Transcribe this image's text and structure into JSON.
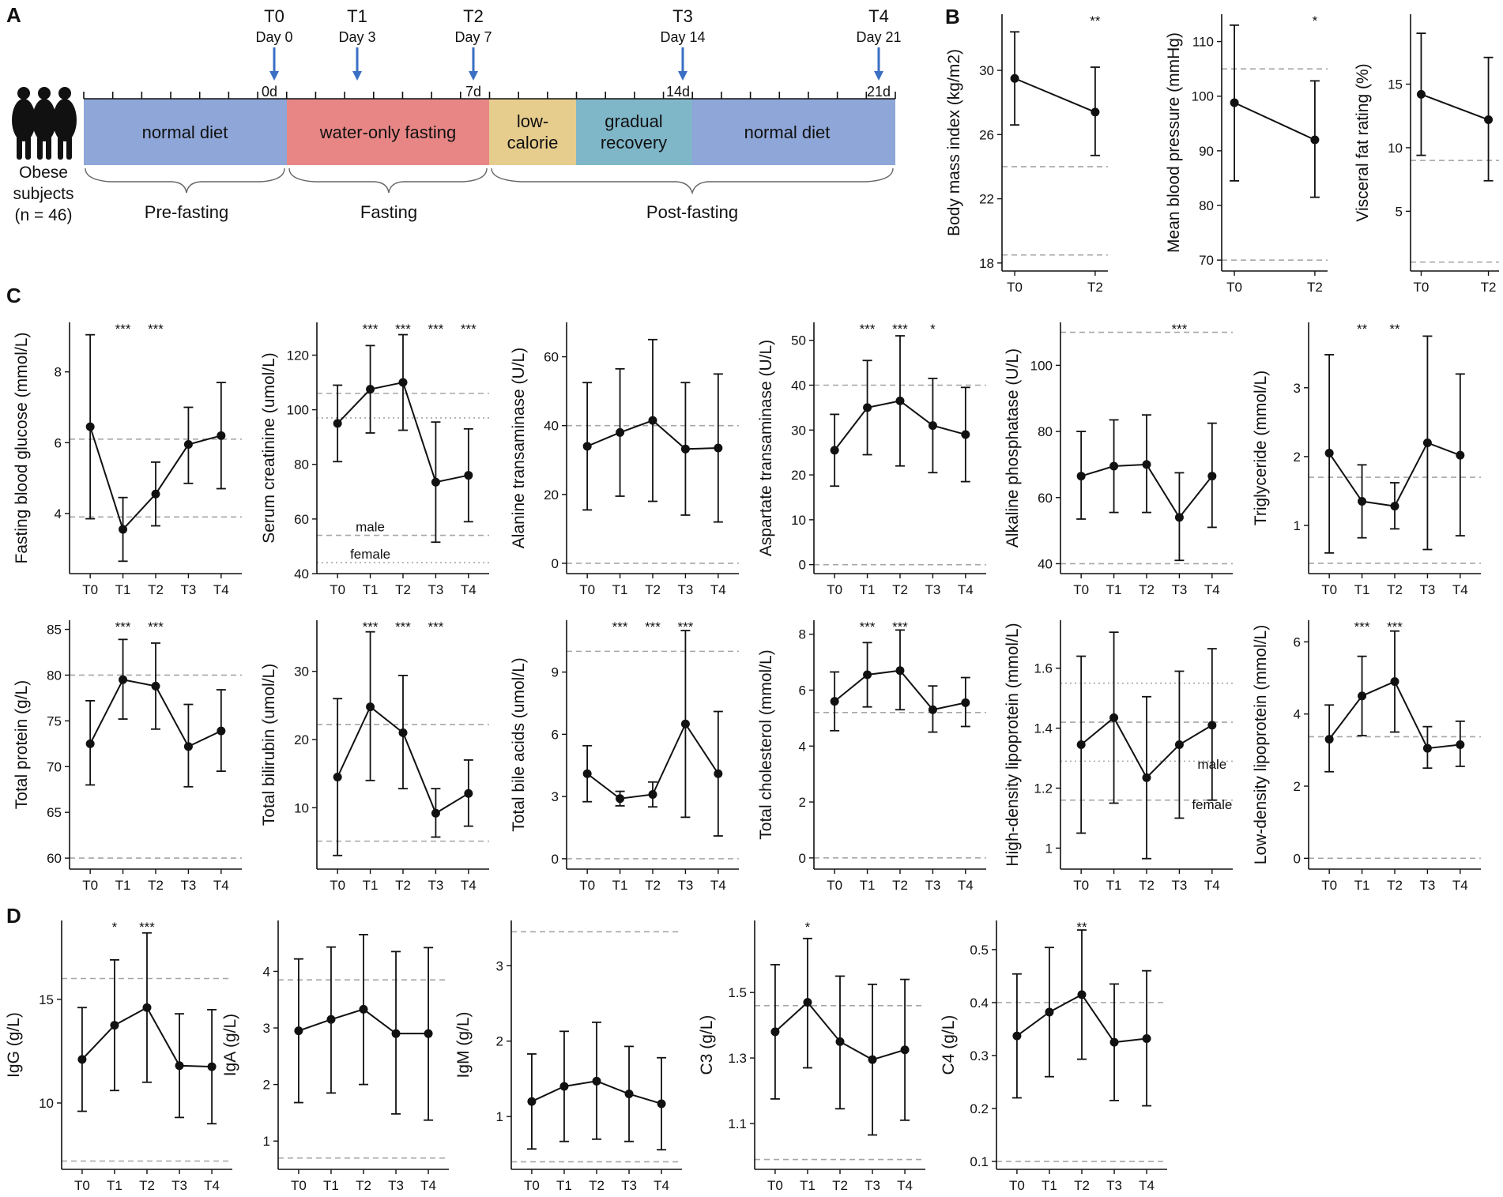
{
  "panel_labels": {
    "a": "A",
    "b": "B",
    "c": "C",
    "d": "D"
  },
  "panel_a": {
    "subjects_label_line1": "Obese",
    "subjects_label_line2": "subjects",
    "subjects_label_line3": "(n = 46)",
    "timepoints": [
      {
        "label": "T0",
        "day": "Day 0",
        "marker": "0d"
      },
      {
        "label": "T1",
        "day": "Day 3",
        "marker": ""
      },
      {
        "label": "T2",
        "day": "Day 7",
        "marker": "7d"
      },
      {
        "label": "T3",
        "day": "Day 14",
        "marker": "14d"
      },
      {
        "label": "T4",
        "day": "Day 21",
        "marker": "21d"
      }
    ],
    "phases": [
      {
        "line1": "normal diet",
        "line2": "",
        "color": "#8ea6d8"
      },
      {
        "line1": "water-only fasting",
        "line2": "",
        "color": "#e88686"
      },
      {
        "line1": "low-",
        "line2": "calorie",
        "color": "#e6cc8d"
      },
      {
        "line1": "gradual",
        "line2": "recovery",
        "color": "#7fb7c9"
      },
      {
        "line1": "normal diet",
        "line2": "",
        "color": "#8ea6d8"
      }
    ],
    "periods": [
      "Pre-fasting",
      "Fasting",
      "Post-fasting"
    ],
    "arrow_color": "#3a6fc4"
  },
  "chart_data": [
    {
      "id": "bmi",
      "type": "line",
      "ylabel": "Body mass index (kg/m2)",
      "categories": [
        "T0",
        "T2"
      ],
      "values": [
        29.5,
        27.4
      ],
      "err_low": [
        26.6,
        24.7
      ],
      "err_high": [
        32.4,
        30.2
      ],
      "significance": [
        "",
        "**"
      ],
      "ylim": [
        17.5,
        33.5
      ],
      "yticks": [
        18,
        22,
        26,
        30
      ],
      "ref_lines": [
        {
          "y": 24,
          "style": "dashed"
        },
        {
          "y": 18.5,
          "style": "dashed"
        }
      ],
      "annotations": []
    },
    {
      "id": "map",
      "type": "line",
      "ylabel": "Mean blood pressure (mmHg)",
      "categories": [
        "T0",
        "T2"
      ],
      "values": [
        98.8,
        92.0
      ],
      "err_low": [
        84.5,
        81.5
      ],
      "err_high": [
        113.0,
        102.8
      ],
      "significance": [
        "",
        "*"
      ],
      "ylim": [
        68,
        115
      ],
      "yticks": [
        70,
        80,
        90,
        100,
        110
      ],
      "ref_lines": [
        {
          "y": 105,
          "style": "dashed"
        },
        {
          "y": 70,
          "style": "dashed"
        }
      ],
      "annotations": []
    },
    {
      "id": "vfr",
      "type": "line",
      "ylabel": "Visceral fat rating (%)",
      "categories": [
        "T0",
        "T2"
      ],
      "values": [
        14.2,
        12.2
      ],
      "err_low": [
        9.4,
        7.4
      ],
      "err_high": [
        19.0,
        17.1
      ],
      "significance": [
        "",
        ""
      ],
      "ylim": [
        0.3,
        20.5
      ],
      "yticks": [
        5,
        10,
        15
      ],
      "ref_lines": [
        {
          "y": 9,
          "style": "dashed"
        },
        {
          "y": 1,
          "style": "dashed"
        }
      ],
      "annotations": []
    },
    {
      "id": "fbg",
      "type": "line",
      "ylabel": "Fasting blood glucose (mmol/L)",
      "categories": [
        "T0",
        "T1",
        "T2",
        "T3",
        "T4"
      ],
      "values": [
        6.45,
        3.55,
        4.55,
        5.95,
        6.2
      ],
      "err_low": [
        3.85,
        2.65,
        3.65,
        4.85,
        4.7
      ],
      "err_high": [
        9.05,
        4.45,
        5.45,
        7.0,
        7.7
      ],
      "significance": [
        "",
        "***",
        "***",
        "",
        ""
      ],
      "ylim": [
        2.3,
        9.4
      ],
      "yticks": [
        4,
        6,
        8
      ],
      "ref_lines": [
        {
          "y": 6.1,
          "style": "dashed"
        },
        {
          "y": 3.9,
          "style": "dashed"
        }
      ],
      "annotations": []
    },
    {
      "id": "crea",
      "type": "line",
      "ylabel": "Serum creatinine (umol/L)",
      "categories": [
        "T0",
        "T1",
        "T2",
        "T3",
        "T4"
      ],
      "values": [
        95,
        107.5,
        110,
        73.5,
        76
      ],
      "err_low": [
        81,
        91.5,
        92.5,
        51.5,
        59
      ],
      "err_high": [
        109,
        123.5,
        127.5,
        95.5,
        93
      ],
      "significance": [
        "",
        "***",
        "***",
        "***",
        "***"
      ],
      "ylim": [
        40,
        132
      ],
      "yticks": [
        40,
        60,
        80,
        100,
        120
      ],
      "ref_lines": [
        {
          "y": 106,
          "style": "dashed"
        },
        {
          "y": 97,
          "style": "dotted"
        },
        {
          "y": 54,
          "style": "dashed"
        },
        {
          "y": 44,
          "style": "dotted"
        }
      ],
      "annotations": [
        {
          "text": "male",
          "x": "T1",
          "y": 55.5
        },
        {
          "text": "female",
          "x": "T1",
          "y": 45.5
        }
      ]
    },
    {
      "id": "alt",
      "type": "line",
      "ylabel": "Alanine transaminase (U/L)",
      "categories": [
        "T0",
        "T1",
        "T2",
        "T3",
        "T4"
      ],
      "values": [
        34,
        38,
        41.5,
        33.2,
        33.5
      ],
      "err_low": [
        15.5,
        19.5,
        18,
        14,
        12
      ],
      "err_high": [
        52.5,
        56.5,
        65,
        52.5,
        55
      ],
      "significance": [
        "",
        "",
        "",
        "",
        ""
      ],
      "ylim": [
        -3,
        70
      ],
      "yticks": [
        0,
        20,
        40,
        60
      ],
      "ref_lines": [
        {
          "y": 40,
          "style": "dashed"
        },
        {
          "y": 0,
          "style": "dashed"
        }
      ],
      "annotations": []
    },
    {
      "id": "ast",
      "type": "line",
      "ylabel": "Aspartate transaminase (U/L)",
      "categories": [
        "T0",
        "T1",
        "T2",
        "T3",
        "T4"
      ],
      "values": [
        25.5,
        35,
        36.5,
        31,
        29
      ],
      "err_low": [
        17.5,
        24.5,
        22,
        20.5,
        18.5
      ],
      "err_high": [
        33.5,
        45.5,
        51,
        41.5,
        39.5
      ],
      "significance": [
        "",
        "***",
        "***",
        "*",
        ""
      ],
      "ylim": [
        -2,
        54
      ],
      "yticks": [
        0,
        10,
        20,
        30,
        40,
        50
      ],
      "ref_lines": [
        {
          "y": 40,
          "style": "dashed"
        },
        {
          "y": 0,
          "style": "dashed"
        }
      ],
      "annotations": []
    },
    {
      "id": "alp",
      "type": "line",
      "ylabel": "Alkaline phosphatase  (U/L)",
      "categories": [
        "T0",
        "T1",
        "T2",
        "T3",
        "T4"
      ],
      "values": [
        66.5,
        69.5,
        70,
        54,
        66.5
      ],
      "err_low": [
        53.5,
        55.5,
        55.5,
        41,
        51
      ],
      "err_high": [
        80,
        83.5,
        85,
        67.5,
        82.5
      ],
      "significance": [
        "",
        "",
        "",
        "***",
        ""
      ],
      "ylim": [
        37,
        113
      ],
      "yticks": [
        40,
        60,
        80,
        100
      ],
      "ref_lines": [
        {
          "y": 110,
          "style": "dashed"
        },
        {
          "y": 40,
          "style": "dashed"
        }
      ],
      "annotations": []
    },
    {
      "id": "tg",
      "type": "line",
      "ylabel": "Triglyceride (mmol/L)",
      "categories": [
        "T0",
        "T1",
        "T2",
        "T3",
        "T4"
      ],
      "values": [
        2.05,
        1.35,
        1.28,
        2.2,
        2.02
      ],
      "err_low": [
        0.6,
        0.82,
        0.95,
        0.65,
        0.85
      ],
      "err_high": [
        3.48,
        1.88,
        1.62,
        3.75,
        3.2
      ],
      "significance": [
        "",
        "**",
        "**",
        "",
        ""
      ],
      "ylim": [
        0.3,
        3.95
      ],
      "yticks": [
        1,
        2,
        3
      ],
      "ref_lines": [
        {
          "y": 1.7,
          "style": "dashed"
        },
        {
          "y": 0.45,
          "style": "dashed"
        }
      ],
      "annotations": []
    },
    {
      "id": "tp",
      "type": "line",
      "ylabel": "Total protein (g/L)",
      "categories": [
        "T0",
        "T1",
        "T2",
        "T3",
        "T4"
      ],
      "values": [
        72.5,
        79.5,
        78.8,
        72.2,
        73.9
      ],
      "err_low": [
        68,
        75.2,
        74.1,
        67.8,
        69.5
      ],
      "err_high": [
        77.2,
        83.9,
        83.5,
        76.8,
        78.4
      ],
      "significance": [
        "",
        "***",
        "***",
        "",
        ""
      ],
      "ylim": [
        58.8,
        86
      ],
      "yticks": [
        60,
        65,
        70,
        75,
        80,
        85
      ],
      "ref_lines": [
        {
          "y": 80,
          "style": "dashed"
        },
        {
          "y": 60,
          "style": "dashed"
        }
      ],
      "annotations": []
    },
    {
      "id": "tbil",
      "type": "line",
      "ylabel": "Total bilirubin (umol/L)",
      "categories": [
        "T0",
        "T1",
        "T2",
        "T3",
        "T4"
      ],
      "values": [
        14.5,
        24.8,
        21,
        9.2,
        12.1
      ],
      "err_low": [
        3,
        14,
        12.8,
        5.7,
        7.3
      ],
      "err_high": [
        26,
        35.8,
        29.4,
        12.8,
        17
      ],
      "significance": [
        "",
        "***",
        "***",
        "***",
        ""
      ],
      "ylim": [
        1,
        37.5
      ],
      "yticks": [
        10,
        20,
        30
      ],
      "ref_lines": [
        {
          "y": 22.2,
          "style": "dashed"
        },
        {
          "y": 5.1,
          "style": "dashed"
        }
      ],
      "annotations": []
    },
    {
      "id": "tba",
      "type": "line",
      "ylabel": "Total bile acids (umol/L)",
      "categories": [
        "T0",
        "T1",
        "T2",
        "T3",
        "T4"
      ],
      "values": [
        4.1,
        2.9,
        3.1,
        6.5,
        4.1
      ],
      "err_low": [
        2.75,
        2.55,
        2.5,
        2.0,
        1.1
      ],
      "err_high": [
        5.45,
        3.25,
        3.7,
        11.0,
        7.1
      ],
      "significance": [
        "",
        "***",
        "***",
        "***",
        ""
      ],
      "ylim": [
        -0.5,
        11.5
      ],
      "yticks": [
        0,
        3,
        6,
        9
      ],
      "ref_lines": [
        {
          "y": 10,
          "style": "dashed"
        },
        {
          "y": 0,
          "style": "dashed"
        }
      ],
      "annotations": []
    },
    {
      "id": "tc",
      "type": "line",
      "ylabel": "Total cholesterol (mmol/L)",
      "categories": [
        "T0",
        "T1",
        "T2",
        "T3",
        "T4"
      ],
      "values": [
        5.6,
        6.55,
        6.7,
        5.3,
        5.55
      ],
      "err_low": [
        4.55,
        5.4,
        5.3,
        4.5,
        4.7
      ],
      "err_high": [
        6.65,
        7.7,
        8.15,
        6.15,
        6.45
      ],
      "significance": [
        "",
        "***",
        "***",
        "",
        ""
      ],
      "ylim": [
        -0.4,
        8.5
      ],
      "yticks": [
        0,
        2,
        4,
        6,
        8
      ],
      "ref_lines": [
        {
          "y": 5.2,
          "style": "dashed"
        },
        {
          "y": 0,
          "style": "dashed"
        }
      ],
      "annotations": []
    },
    {
      "id": "hdl",
      "type": "line",
      "ylabel": "High-density lipoprotein (mmol/L)",
      "categories": [
        "T0",
        "T1",
        "T2",
        "T3",
        "T4"
      ],
      "values": [
        1.345,
        1.435,
        1.235,
        1.345,
        1.41
      ],
      "err_low": [
        1.05,
        1.15,
        0.965,
        1.1,
        1.16
      ],
      "err_high": [
        1.64,
        1.72,
        1.505,
        1.59,
        1.665
      ],
      "significance": [
        "",
        "",
        "",
        "",
        ""
      ],
      "ylim": [
        0.93,
        1.76
      ],
      "yticks": [
        1.0,
        1.2,
        1.4,
        1.6
      ],
      "ref_lines": [
        {
          "y": 1.55,
          "style": "dotted"
        },
        {
          "y": 1.42,
          "style": "dashed"
        },
        {
          "y": 1.29,
          "style": "dotted"
        },
        {
          "y": 1.16,
          "style": "dashed"
        }
      ],
      "annotations": [
        {
          "text": "male",
          "x": "T4",
          "y": 1.265
        },
        {
          "text": "female",
          "x": "T4",
          "y": 1.13
        }
      ]
    },
    {
      "id": "ldl",
      "type": "line",
      "ylabel": "Low-density lipoprotein (mmol/L)",
      "categories": [
        "T0",
        "T1",
        "T2",
        "T3",
        "T4"
      ],
      "values": [
        3.3,
        4.5,
        4.9,
        3.05,
        3.15
      ],
      "err_low": [
        2.4,
        3.4,
        3.5,
        2.5,
        2.55
      ],
      "err_high": [
        4.25,
        5.6,
        6.3,
        3.65,
        3.8
      ],
      "significance": [
        "",
        "***",
        "***",
        "",
        ""
      ],
      "ylim": [
        -0.3,
        6.6
      ],
      "yticks": [
        0,
        2,
        4,
        6
      ],
      "ref_lines": [
        {
          "y": 3.37,
          "style": "dashed"
        },
        {
          "y": 0,
          "style": "dashed"
        }
      ],
      "annotations": []
    },
    {
      "id": "igg",
      "type": "line",
      "ylabel": "IgG (g/L)",
      "categories": [
        "T0",
        "T1",
        "T2",
        "T3",
        "T4"
      ],
      "values": [
        12.1,
        13.75,
        14.6,
        11.8,
        11.75
      ],
      "err_low": [
        9.6,
        10.6,
        11.0,
        9.3,
        9.0
      ],
      "err_high": [
        14.6,
        16.9,
        18.2,
        14.3,
        14.5
      ],
      "significance": [
        "",
        "*",
        "***",
        "",
        ""
      ],
      "ylim": [
        6.8,
        18.8
      ],
      "yticks": [
        10,
        15
      ],
      "ref_lines": [
        {
          "y": 16,
          "style": "dashed"
        },
        {
          "y": 7.2,
          "style": "dashed"
        }
      ],
      "annotations": []
    },
    {
      "id": "iga",
      "type": "line",
      "ylabel": "IgA (g/L)",
      "categories": [
        "T0",
        "T1",
        "T2",
        "T3",
        "T4"
      ],
      "values": [
        2.95,
        3.15,
        3.33,
        2.9,
        2.9
      ],
      "err_low": [
        1.68,
        1.85,
        2.0,
        1.48,
        1.37
      ],
      "err_high": [
        4.22,
        4.43,
        4.65,
        4.35,
        4.42
      ],
      "significance": [
        "",
        "",
        "",
        "",
        ""
      ],
      "ylim": [
        0.5,
        4.9
      ],
      "yticks": [
        1,
        2,
        3,
        4
      ],
      "ref_lines": [
        {
          "y": 3.85,
          "style": "dashed"
        },
        {
          "y": 0.7,
          "style": "dashed"
        }
      ],
      "annotations": []
    },
    {
      "id": "igm",
      "type": "line",
      "ylabel": "IgM (g/L)",
      "categories": [
        "T0",
        "T1",
        "T2",
        "T3",
        "T4"
      ],
      "values": [
        1.2,
        1.4,
        1.47,
        1.3,
        1.17
      ],
      "err_low": [
        0.57,
        0.67,
        0.7,
        0.67,
        0.56
      ],
      "err_high": [
        1.83,
        2.13,
        2.25,
        1.93,
        1.78
      ],
      "significance": [
        "",
        "",
        "",
        "",
        ""
      ],
      "ylim": [
        0.3,
        3.6
      ],
      "yticks": [
        1,
        2,
        3
      ],
      "ref_lines": [
        {
          "y": 3.45,
          "style": "dashed"
        },
        {
          "y": 0.4,
          "style": "dashed"
        }
      ],
      "annotations": []
    },
    {
      "id": "c3",
      "type": "line",
      "ylabel": "C3 (g/L)",
      "categories": [
        "T0",
        "T1",
        "T2",
        "T3",
        "T4"
      ],
      "values": [
        1.38,
        1.47,
        1.35,
        1.295,
        1.325
      ],
      "err_low": [
        1.175,
        1.27,
        1.145,
        1.065,
        1.11
      ],
      "err_high": [
        1.585,
        1.665,
        1.55,
        1.525,
        1.54
      ],
      "significance": [
        "",
        "*",
        "",
        "",
        ""
      ],
      "ylim": [
        0.96,
        1.72
      ],
      "yticks": [
        1.1,
        1.3,
        1.5
      ],
      "ref_lines": [
        {
          "y": 1.46,
          "style": "dashed"
        },
        {
          "y": 0.99,
          "style": "dashed"
        }
      ],
      "annotations": []
    },
    {
      "id": "c4",
      "type": "line",
      "ylabel": "C4 (g/L)",
      "categories": [
        "T0",
        "T1",
        "T2",
        "T3",
        "T4"
      ],
      "values": [
        0.337,
        0.382,
        0.415,
        0.325,
        0.332
      ],
      "err_low": [
        0.22,
        0.26,
        0.293,
        0.215,
        0.205
      ],
      "err_high": [
        0.454,
        0.504,
        0.537,
        0.435,
        0.46
      ],
      "significance": [
        "",
        "",
        "**",
        "",
        ""
      ],
      "ylim": [
        0.085,
        0.555
      ],
      "yticks": [
        0.1,
        0.2,
        0.3,
        0.4,
        0.5
      ],
      "ref_lines": [
        {
          "y": 0.4,
          "style": "dashed"
        },
        {
          "y": 0.1,
          "style": "dashed"
        }
      ],
      "annotations": []
    }
  ]
}
